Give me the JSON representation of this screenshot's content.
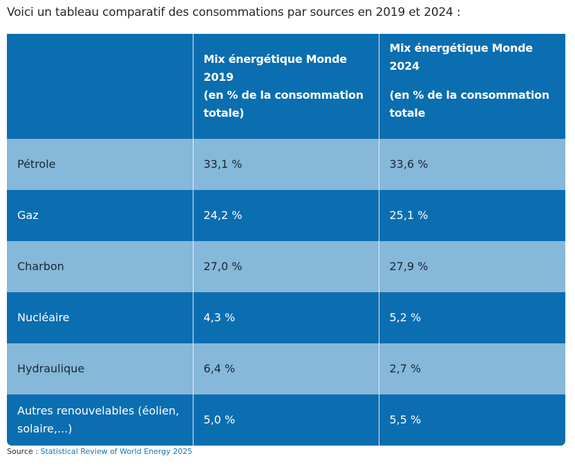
{
  "intro": "Voici un tableau comparatif des consommations par sources en 2019 et 2024 :",
  "table": {
    "headers": {
      "col1": "",
      "col2_title": "Mix énergétique  Monde 2019",
      "col2_note": "(en % de la consommation totale)",
      "col3_title": "Mix énergétique Monde 2024",
      "col3_note": "(en % de la consommation totale"
    },
    "rows": [
      {
        "source": "Pétrole",
        "y2019": "33,1 %",
        "y2024": "33,6 %"
      },
      {
        "source": "Gaz",
        "y2019": "24,2 %",
        "y2024": "25,1 %"
      },
      {
        "source": "Charbon",
        "y2019": "27,0 %",
        "y2024": "27,9 %"
      },
      {
        "source": "Nucléaire",
        "y2019": "4,3 %",
        "y2024": "5,2 %"
      },
      {
        "source": "Hydraulique",
        "y2019": "6,4 %",
        "y2024": "2,7 %"
      },
      {
        "source": "Autres renouvelables (éolien, solaire,...)",
        "y2019": "5,0 %",
        "y2024": "5,5 %"
      }
    ]
  },
  "source": {
    "label": "Source : ",
    "link_text": "Statistical Review of World Energy 2025"
  },
  "colors": {
    "dark_row": "#0b6eb0",
    "light_row": "#86b8d9",
    "link": "#1273b8"
  }
}
